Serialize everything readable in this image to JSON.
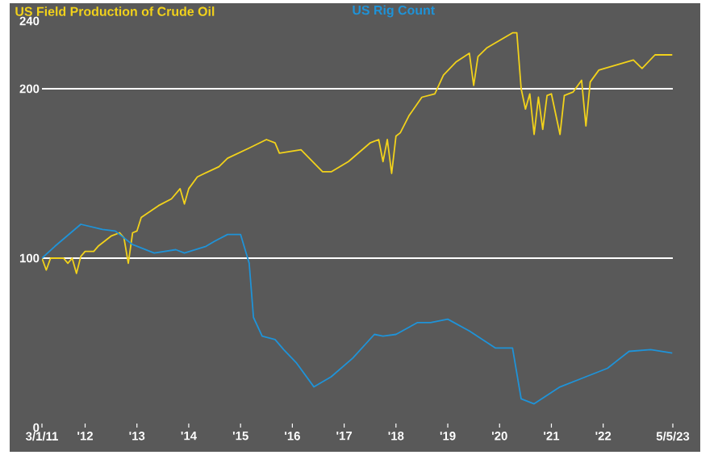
{
  "chart_data": {
    "type": "line",
    "series": [
      {
        "name": "US Field Production of Crude Oil",
        "color": "#f2d21b",
        "x": [
          "2011-03",
          "2011-04",
          "2011-05",
          "2011-08",
          "2011-09",
          "2011-10",
          "2011-11",
          "2011-12",
          "2012-01",
          "2012-03",
          "2012-04",
          "2012-07",
          "2012-09",
          "2012-10",
          "2012-11",
          "2012-12",
          "2013-01",
          "2013-02",
          "2013-06",
          "2013-09",
          "2013-11",
          "2013-12",
          "2014-01",
          "2014-03",
          "2014-08",
          "2014-10",
          "2015-03",
          "2015-07",
          "2015-09",
          "2015-10",
          "2016-03",
          "2016-08",
          "2016-10",
          "2017-02",
          "2017-07",
          "2017-09",
          "2017-10",
          "2017-11",
          "2017-12",
          "2018-01",
          "2018-02",
          "2018-04",
          "2018-07",
          "2018-10",
          "2018-12",
          "2019-03",
          "2019-06",
          "2019-07",
          "2019-08",
          "2019-10",
          "2020-02",
          "2020-04",
          "2020-05",
          "2020-06",
          "2020-07",
          "2020-08",
          "2020-09",
          "2020-10",
          "2020-11",
          "2020-12",
          "2021-01",
          "2021-03",
          "2021-04",
          "2021-06",
          "2021-08",
          "2021-09",
          "2021-10",
          "2021-12",
          "2022-04",
          "2022-08",
          "2022-10",
          "2023-01",
          "2023-05"
        ],
        "values": [
          100,
          93,
          100,
          100,
          97,
          100,
          91,
          101,
          104,
          104,
          107,
          113,
          115,
          112,
          97,
          115,
          116,
          124,
          131,
          135,
          141,
          132,
          141,
          148,
          154,
          159,
          165,
          170,
          168,
          162,
          164,
          151,
          151,
          157,
          168,
          170,
          157,
          170,
          150,
          172,
          174,
          184,
          195,
          197,
          208,
          216,
          221,
          202,
          219,
          224,
          230,
          233,
          233,
          200,
          188,
          197,
          173,
          195,
          176,
          196,
          197,
          173,
          196,
          198,
          205,
          178,
          204,
          211,
          214,
          217,
          212,
          220,
          220
        ]
      },
      {
        "name": "US Rig Count",
        "color": "#1f93d8",
        "x": [
          "2011-03",
          "2011-06",
          "2011-12",
          "2012-05",
          "2012-08",
          "2012-12",
          "2013-05",
          "2013-10",
          "2013-12",
          "2014-05",
          "2014-07",
          "2014-10",
          "2015-01",
          "2015-03",
          "2015-04",
          "2015-06",
          "2015-09",
          "2015-11",
          "2016-02",
          "2016-06",
          "2016-10",
          "2017-03",
          "2017-08",
          "2017-10",
          "2018-01",
          "2018-06",
          "2018-09",
          "2019-01",
          "2019-06",
          "2019-12",
          "2020-04",
          "2020-06",
          "2020-09",
          "2021-03",
          "2021-09",
          "2022-02",
          "2022-07",
          "2022-12",
          "2023-05"
        ],
        "values": [
          100,
          107,
          120,
          117,
          116,
          108,
          103,
          105,
          103,
          107,
          110,
          114,
          114,
          97,
          65,
          54,
          52,
          46,
          38,
          24,
          30,
          41,
          55,
          54,
          55,
          62,
          62,
          64,
          57,
          47,
          47,
          17,
          14,
          24,
          30,
          35,
          45,
          46,
          44
        ]
      }
    ],
    "xlim": [
      "2011-03-01",
      "2023-05-05"
    ],
    "xticks": [
      {
        "value": "2011-03-01",
        "label": "3/1/11"
      },
      {
        "value": "2012-01-01",
        "label": "'12"
      },
      {
        "value": "2013-01-01",
        "label": "'13"
      },
      {
        "value": "2014-01-01",
        "label": "'14"
      },
      {
        "value": "2015-01-01",
        "label": "'15"
      },
      {
        "value": "2016-01-01",
        "label": "'16"
      },
      {
        "value": "2017-01-01",
        "label": "'17"
      },
      {
        "value": "2018-01-01",
        "label": "'18"
      },
      {
        "value": "2019-01-01",
        "label": "'19"
      },
      {
        "value": "2020-01-01",
        "label": "'20"
      },
      {
        "value": "2021-01-01",
        "label": "'21"
      },
      {
        "value": "2022-01-01",
        "label": "'22"
      },
      {
        "value": "2023-05-05",
        "label": "5/5/23"
      }
    ],
    "ylim": [
      0,
      240
    ],
    "yticks": [
      0,
      100,
      200,
      240
    ],
    "ref_lines": [
      {
        "axis": "y",
        "value": 100,
        "color": "#ffffff"
      },
      {
        "axis": "y",
        "value": 200,
        "color": "#ffffff"
      }
    ],
    "legend": "top left"
  }
}
